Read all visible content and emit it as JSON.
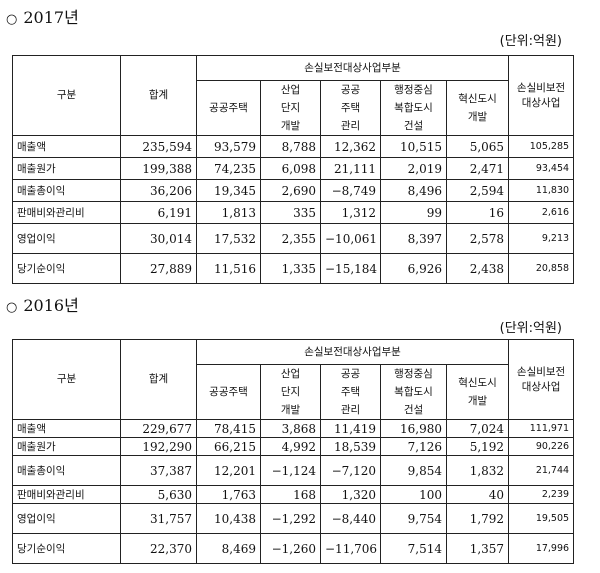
{
  "tables": [
    {
      "year_title": "2017년",
      "unit": "(단위:억원)",
      "headers": {
        "category": "구분",
        "total": "합계",
        "group": "손실보전대상사업부분",
        "public_housing": "공공주택",
        "industrial": [
          "산업",
          "단지",
          "개발"
        ],
        "public_housing_mgmt": [
          "공공",
          "주택",
          "관리"
        ],
        "admin_city": [
          "행정중심",
          "복합도시",
          "건설"
        ],
        "innovation_city": [
          "혁신도시",
          "개발"
        ],
        "non_compensated": [
          "손실비보전",
          "대상사업"
        ]
      },
      "rows": [
        {
          "label": "매출액",
          "values": [
            "235,594",
            "93,579",
            "8,788",
            "12,362",
            "10,515",
            "5,065",
            "105,285"
          ]
        },
        {
          "label": "매출원가",
          "values": [
            "199,388",
            "74,235",
            "6,098",
            "21,111",
            "2,019",
            "2,471",
            "93,454"
          ]
        },
        {
          "label": "매출총이익",
          "values": [
            "36,206",
            "19,345",
            "2,690",
            "−8,749",
            "8,496",
            "2,594",
            "11,830"
          ]
        },
        {
          "label": "판매비와관리비",
          "values": [
            "6,191",
            "1,813",
            "335",
            "1,312",
            "99",
            "16",
            "2,616"
          ]
        },
        {
          "label": "영업이익",
          "values": [
            "30,014",
            "17,532",
            "2,355",
            "−10,061",
            "8,397",
            "2,578",
            "9,213"
          ]
        },
        {
          "label": "당기순이익",
          "values": [
            "27,889",
            "11,516",
            "1,335",
            "−15,184",
            "6,926",
            "2,438",
            "20,858"
          ]
        }
      ]
    },
    {
      "year_title": "2016년",
      "unit": "(단위:억원)",
      "headers": {
        "category": "구분",
        "total": "합계",
        "group": "손실보전대상사업부분",
        "public_housing": "공공주택",
        "industrial": [
          "산업",
          "단지",
          "개발"
        ],
        "public_housing_mgmt": [
          "공공",
          "주택",
          "관리"
        ],
        "admin_city": [
          "행정중심",
          "복합도시",
          "건설"
        ],
        "innovation_city": [
          "혁신도시",
          "개발"
        ],
        "non_compensated": [
          "손실비보전",
          "대상사업"
        ]
      },
      "rows": [
        {
          "label": "매출액",
          "values": [
            "229,677",
            "78,415",
            "3,868",
            "11,419",
            "16,980",
            "7,024",
            "111,971"
          ]
        },
        {
          "label": "매출원가",
          "values": [
            "192,290",
            "66,215",
            "4,992",
            "18,539",
            "7,126",
            "5,192",
            "90,226"
          ]
        },
        {
          "label": "매출총이익",
          "values": [
            "37,387",
            "12,201",
            "−1,124",
            "−7,120",
            "9,854",
            "1,832",
            "21,744"
          ]
        },
        {
          "label": "판매비와관리비",
          "values": [
            "5,630",
            "1,763",
            "168",
            "1,320",
            "100",
            "40",
            "2,239"
          ]
        },
        {
          "label": "영업이익",
          "values": [
            "31,757",
            "10,438",
            "−1,292",
            "−8,440",
            "9,754",
            "1,792",
            "19,505"
          ]
        },
        {
          "label": "당기순이익",
          "values": [
            "22,370",
            "8,469",
            "−1,260",
            "−11,706",
            "7,514",
            "1,357",
            "17,996"
          ]
        }
      ]
    }
  ]
}
